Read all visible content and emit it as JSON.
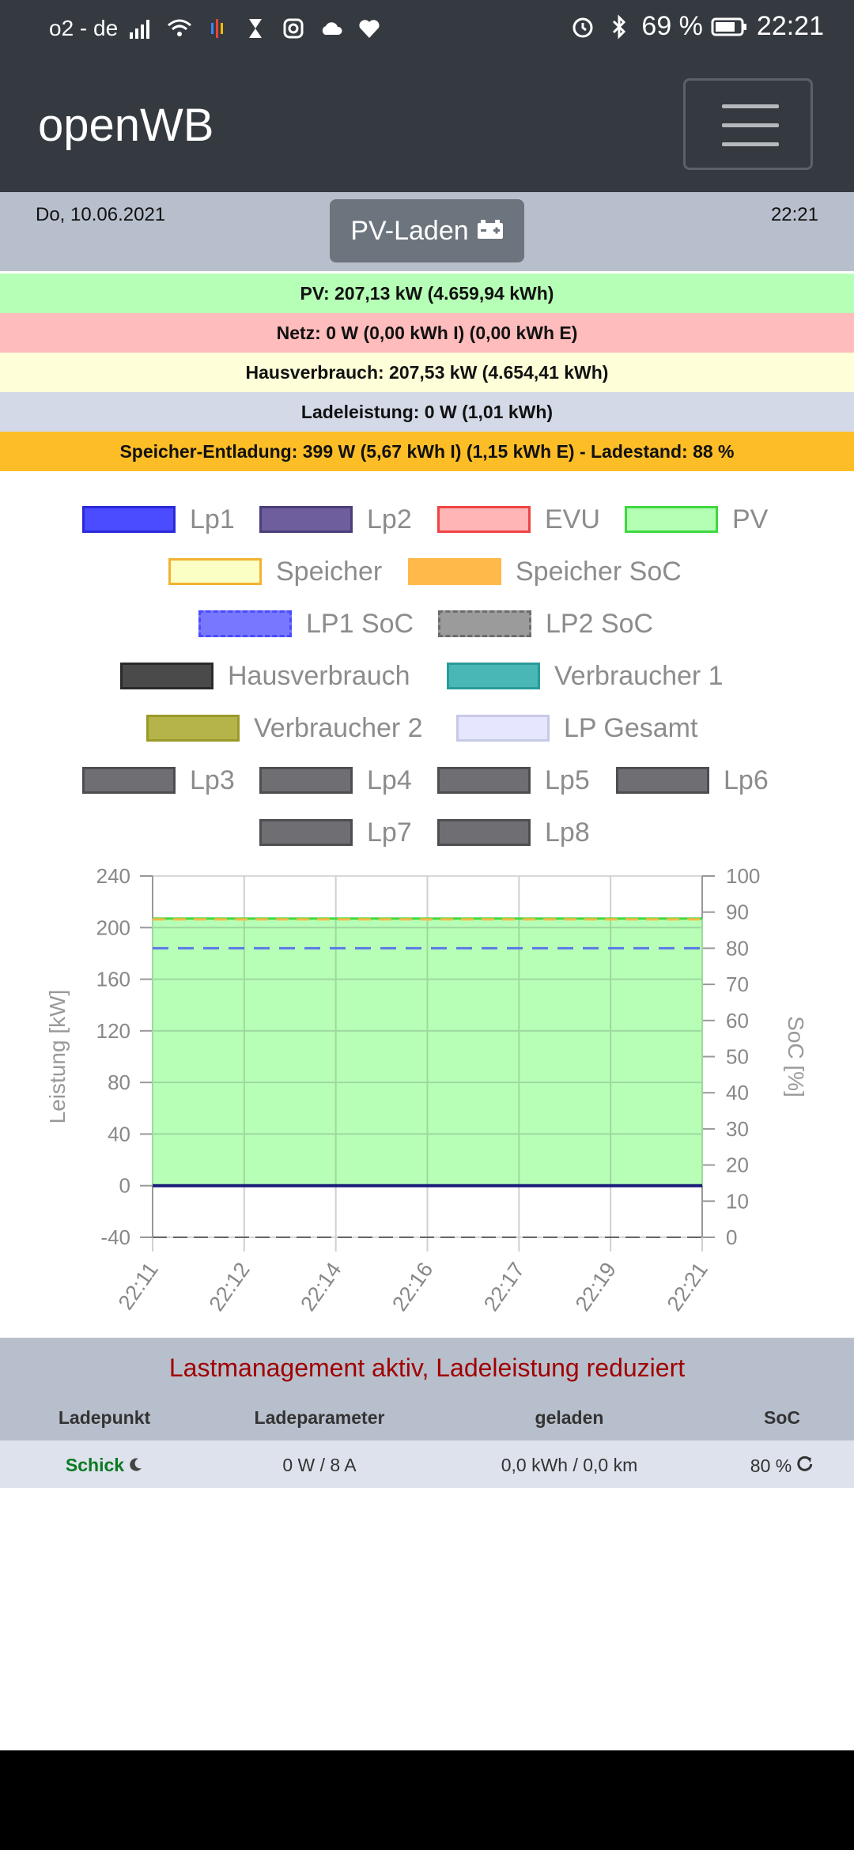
{
  "status": {
    "carrier": "o2 - de",
    "battery": "69 %",
    "time": "22:21"
  },
  "nav": {
    "brand": "openWB"
  },
  "header": {
    "date": "Do, 10.06.2021",
    "time": "22:21",
    "mode_button": "PV-Laden"
  },
  "info_rows": {
    "pv": "PV: 207,13 kW (4.659,94 kWh)",
    "netz": "Netz: 0 W (0,00 kWh I) (0,00 kWh E)",
    "haus": "Hausverbrauch: 207,53 kW (4.654,41 kWh)",
    "lade": "Ladeleistung: 0 W (1,01 kWh)",
    "speicher": "Speicher-Entladung: 399 W (5,67 kWh I) (1,15 kWh E) - Ladestand: 88 %"
  },
  "colors": {
    "pv_row": "#b6ffb6",
    "netz_row": "#ffbcbc",
    "haus_row": "#fefed8",
    "lade_row": "#d3d9e6",
    "speicher_row": "#fdbd27"
  },
  "legend": {
    "lp1": "Lp1",
    "lp2": "Lp2",
    "evu": "EVU",
    "pv": "PV",
    "speicher": "Speicher",
    "speicher_soc": "Speicher SoC",
    "lp1_soc": "LP1 SoC",
    "lp2_soc": "LP2 SoC",
    "hausverbrauch": "Hausverbrauch",
    "verbraucher1": "Verbraucher 1",
    "verbraucher2": "Verbraucher 2",
    "lp_gesamt": "LP Gesamt",
    "lp3": "Lp3",
    "lp4": "Lp4",
    "lp5": "Lp5",
    "lp6": "Lp6",
    "lp7": "Lp7",
    "lp8": "Lp8"
  },
  "chart_data": {
    "type": "area",
    "ylabel": "Leistung [kW]",
    "y2label": "SoC [%]",
    "ylim": [
      -40,
      240
    ],
    "y2lim": [
      0,
      100
    ],
    "yticks": [
      "240",
      "200",
      "160",
      "120",
      "80",
      "40",
      "0",
      "-40"
    ],
    "y2ticks": [
      "100",
      "90",
      "80",
      "70",
      "60",
      "50",
      "40",
      "30",
      "20",
      "10",
      "0"
    ],
    "x": [
      "22:11",
      "22:12",
      "22:14",
      "22:16",
      "22:17",
      "22:19",
      "22:21"
    ],
    "grid": true,
    "series": [
      {
        "name": "PV",
        "values": [
          207,
          207,
          207,
          207,
          207,
          207,
          207
        ]
      },
      {
        "name": "Speicher SoC",
        "values": [
          88,
          88,
          88,
          88,
          88,
          88,
          88
        ]
      },
      {
        "name": "LP1 SoC",
        "values": [
          80,
          80,
          80,
          80,
          80,
          80,
          80
        ]
      },
      {
        "name": "Lp1",
        "values": [
          0,
          0,
          0,
          0,
          0,
          0,
          0
        ]
      }
    ]
  },
  "lastmanagement": {
    "message": "Lastmanagement aktiv, Ladeleistung reduziert",
    "headers": [
      "Ladepunkt",
      "Ladeparameter",
      "geladen",
      "SoC"
    ],
    "row": {
      "name": "Schick",
      "param": "0 W / 8 A",
      "geladen": "0,0 kWh / 0,0 km",
      "soc": "80 %"
    }
  }
}
